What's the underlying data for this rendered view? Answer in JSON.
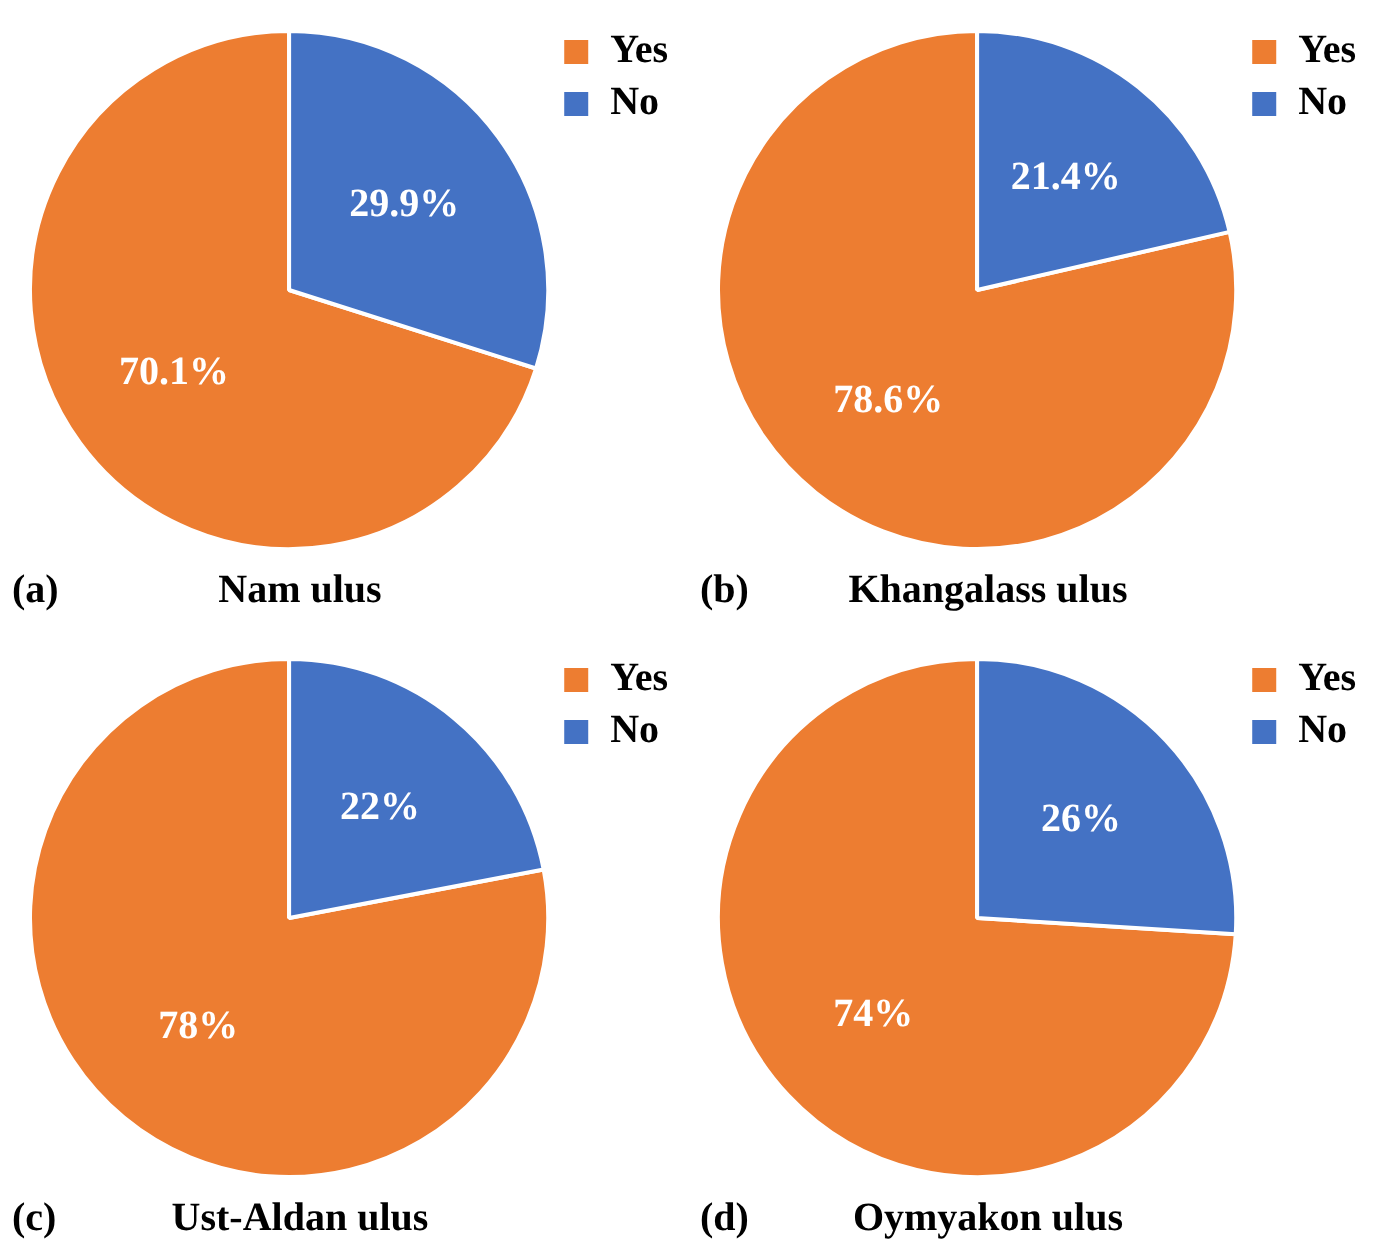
{
  "chart_data": [
    {
      "type": "pie",
      "title": "Nam ulus",
      "annotations": [
        "(a)"
      ],
      "categories": [
        "Yes",
        "No"
      ],
      "values": [
        70.1,
        29.9
      ],
      "colors": [
        "#ed7d31",
        "#4472c4"
      ],
      "value_labels": [
        "70.1%",
        "29.9%"
      ],
      "legend": "top right"
    },
    {
      "type": "pie",
      "title": "Khangalass ulus",
      "annotations": [
        "(b)"
      ],
      "categories": [
        "Yes",
        "No"
      ],
      "values": [
        78.6,
        21.4
      ],
      "colors": [
        "#ed7d31",
        "#4472c4"
      ],
      "value_labels": [
        "78.6%",
        "21.4%"
      ],
      "legend": "top right"
    },
    {
      "type": "pie",
      "title": "Ust-Aldan ulus",
      "annotations": [
        "(c)"
      ],
      "categories": [
        "Yes",
        "No"
      ],
      "values": [
        78,
        22
      ],
      "colors": [
        "#ed7d31",
        "#4472c4"
      ],
      "value_labels": [
        "78%",
        "22%"
      ],
      "legend": "top right"
    },
    {
      "type": "pie",
      "title": "Oymyakon ulus",
      "annotations": [
        "(d)"
      ],
      "categories": [
        "Yes",
        "No"
      ],
      "values": [
        74,
        26
      ],
      "colors": [
        "#ed7d31",
        "#4472c4"
      ],
      "value_labels": [
        "74%",
        "26%"
      ],
      "legend": "top right"
    }
  ]
}
